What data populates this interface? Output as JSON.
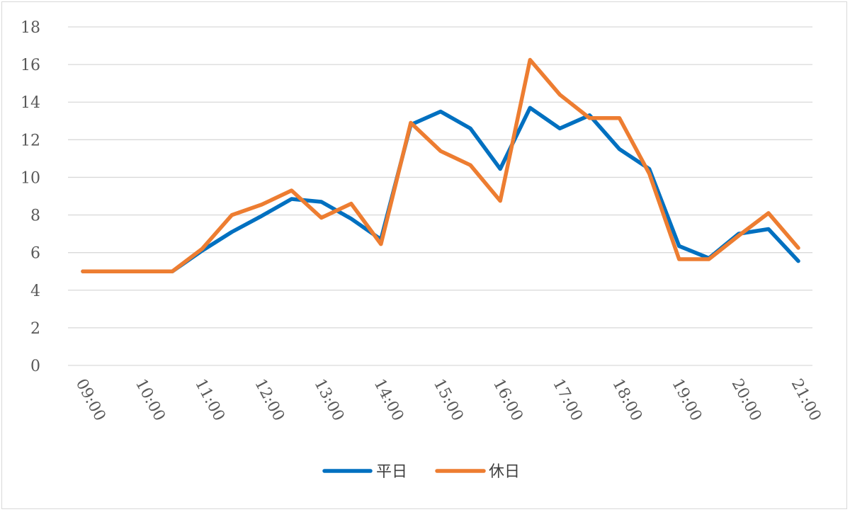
{
  "chart_data": {
    "type": "line",
    "title": "",
    "xlabel": "",
    "ylabel": "",
    "ylim": [
      0,
      18
    ],
    "yticks": [
      0,
      2,
      4,
      6,
      8,
      10,
      12,
      14,
      16,
      18
    ],
    "grid": "horizontal",
    "legend_position": "bottom",
    "x": [
      "09:00",
      "09:30",
      "10:00",
      "10:30",
      "11:00",
      "11:30",
      "12:00",
      "12:30",
      "13:00",
      "13:30",
      "14:00",
      "14:30",
      "15:00",
      "15:30",
      "16:00",
      "16:30",
      "17:00",
      "17:30",
      "18:00",
      "18:30",
      "19:00",
      "19:30",
      "20:00",
      "20:30",
      "21:00"
    ],
    "xtick_labels": [
      "09:00",
      "10:00",
      "11:00",
      "12:00",
      "13:00",
      "14:00",
      "15:00",
      "16:00",
      "17:00",
      "18:00",
      "19:00",
      "20:00",
      "21:00"
    ],
    "series": [
      {
        "name": "平日",
        "color": "#0070c0",
        "values": [
          5.0,
          5.0,
          5.0,
          5.0,
          6.1,
          7.1,
          7.95,
          8.85,
          8.7,
          7.8,
          6.7,
          12.8,
          13.5,
          12.6,
          10.45,
          13.7,
          12.6,
          13.3,
          11.5,
          10.45,
          6.35,
          5.7,
          7.0,
          7.25,
          5.55
        ]
      },
      {
        "name": "休日",
        "color": "#ed7d31",
        "values": [
          5.0,
          5.0,
          5.0,
          5.0,
          6.2,
          8.0,
          8.55,
          9.3,
          7.85,
          8.6,
          6.45,
          12.9,
          11.4,
          10.65,
          8.75,
          16.25,
          14.4,
          13.15,
          13.15,
          10.2,
          5.65,
          5.65,
          6.9,
          8.1,
          6.25
        ]
      }
    ]
  }
}
